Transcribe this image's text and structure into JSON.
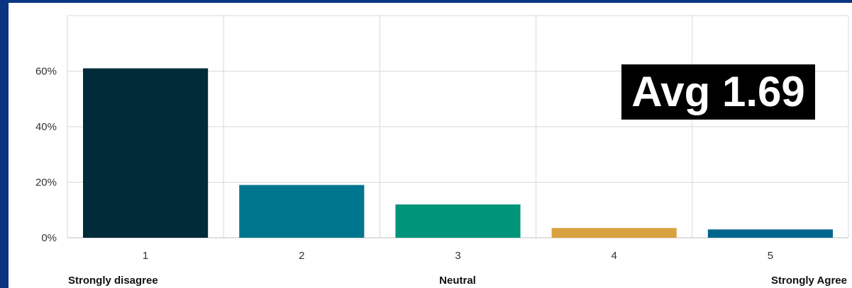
{
  "chart_data": {
    "type": "bar",
    "categories": [
      "1",
      "2",
      "3",
      "4",
      "5"
    ],
    "values": [
      61,
      19,
      12,
      3.5,
      3
    ],
    "colors": [
      "#022b3a",
      "#00768e",
      "#00957a",
      "#d9a240",
      "#00668e"
    ],
    "ylim": [
      0,
      80
    ],
    "yticks": [
      0,
      20,
      40,
      60
    ],
    "ytick_format": "percent",
    "grid": true,
    "scale_labels": {
      "low": "Strongly disagree",
      "mid": "Neutral",
      "high": "Strongly Agree"
    },
    "annotation": "Avg 1.69"
  }
}
